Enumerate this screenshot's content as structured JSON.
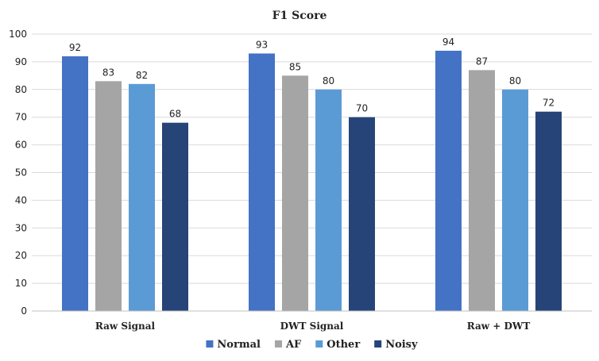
{
  "chart_data": {
    "type": "bar",
    "title": "F1 Score",
    "xlabel": "",
    "ylabel": "",
    "categories": [
      "Raw Signal",
      "DWT Signal",
      "Raw + DWT"
    ],
    "series": [
      {
        "name": "Normal",
        "values": [
          92,
          93,
          94
        ],
        "color": "#4472c4"
      },
      {
        "name": "AF",
        "values": [
          83,
          85,
          87
        ],
        "color": "#a5a5a5"
      },
      {
        "name": "Other",
        "values": [
          82,
          80,
          80
        ],
        "color": "#5b9bd5"
      },
      {
        "name": "Noisy",
        "values": [
          68,
          70,
          72
        ],
        "color": "#264478"
      }
    ],
    "ylim": [
      0,
      100
    ],
    "yticks": [
      0,
      10,
      20,
      30,
      40,
      50,
      60,
      70,
      80,
      90,
      100
    ],
    "grid": true,
    "legend_position": "bottom",
    "data_labels": true
  }
}
